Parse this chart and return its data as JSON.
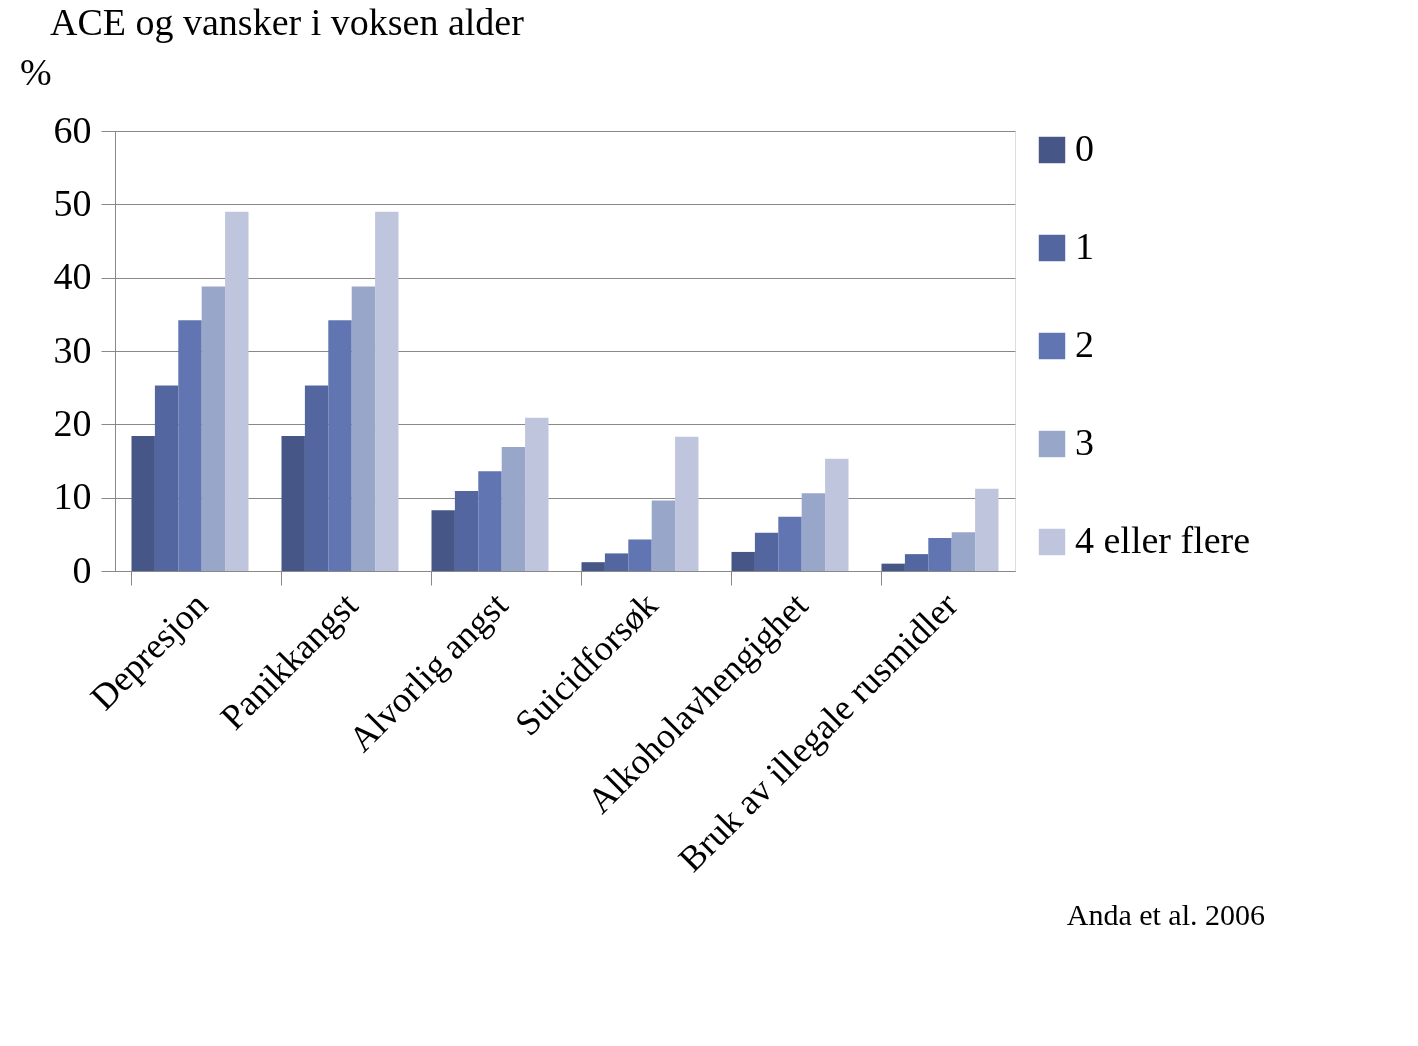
{
  "chart_data": {
    "type": "bar",
    "title": "ACE og vansker i voksen alder",
    "ylabel": "%",
    "categories": [
      "Depresjon",
      "Panikkangst",
      "Alvorlig angst",
      "Suicidforsøk",
      "Alkoholavhengighet",
      "Bruk av illegale rusmidler"
    ],
    "series": [
      {
        "name": "0",
        "color": "#465686",
        "values": [
          18.4,
          18.4,
          8.3,
          1.2,
          2.6,
          1.0
        ]
      },
      {
        "name": "1",
        "color": "#54669f",
        "values": [
          25.3,
          25.3,
          10.9,
          2.4,
          5.2,
          2.3
        ]
      },
      {
        "name": "2",
        "color": "#6075b1",
        "values": [
          34.2,
          34.2,
          13.6,
          4.3,
          7.4,
          4.5
        ]
      },
      {
        "name": "3",
        "color": "#98a6c9",
        "values": [
          38.8,
          38.8,
          16.9,
          9.6,
          10.6,
          5.3
        ]
      },
      {
        "name": "4 eller flere",
        "color": "#bfc5dc",
        "values": [
          49,
          49,
          20.9,
          18.3,
          15.3,
          11.2
        ]
      }
    ],
    "ylim": [
      0,
      60
    ],
    "yticks": [
      0,
      10,
      20,
      30,
      40,
      50,
      60
    ],
    "grid": "y",
    "legend": "right",
    "annotations": [
      "Anda et al. 2006"
    ]
  }
}
